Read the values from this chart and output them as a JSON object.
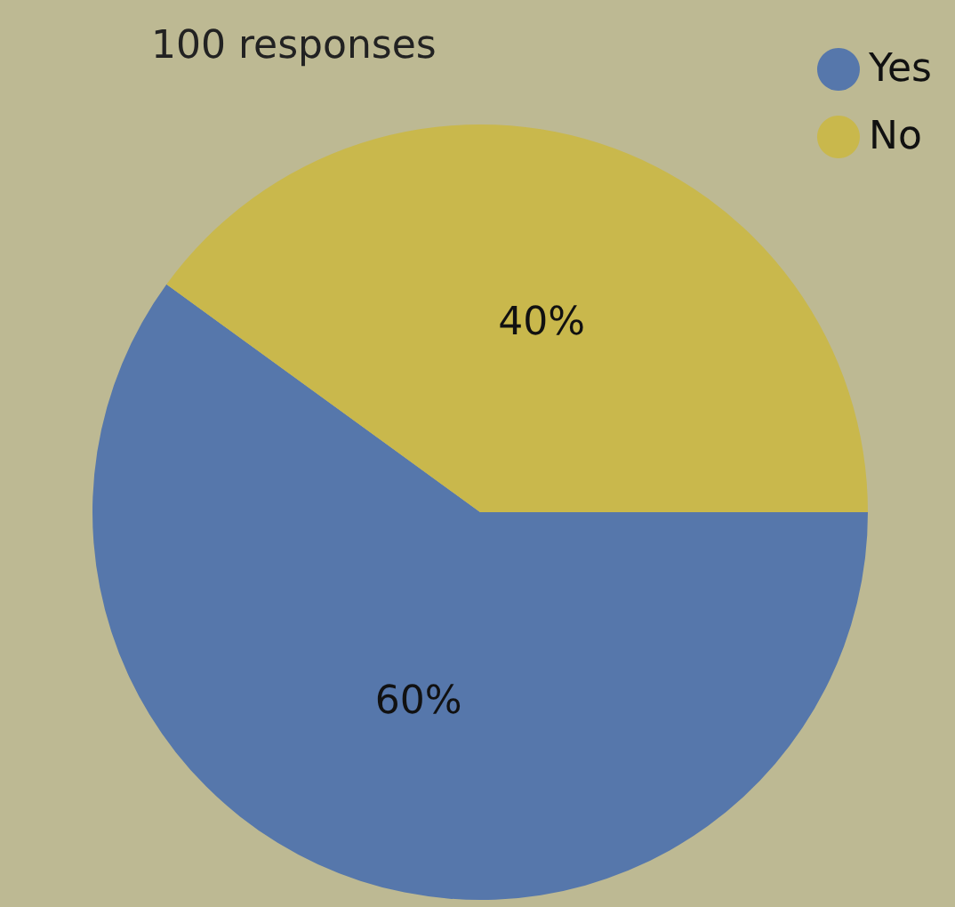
{
  "chart_data": {
    "type": "pie",
    "title": "100 responses",
    "categories": [
      "Yes",
      "No"
    ],
    "values": [
      60,
      40
    ],
    "colors": [
      "#5677ab",
      "#c9b84c"
    ],
    "value_labels": [
      "60%",
      "40%"
    ],
    "legend": "top right"
  }
}
